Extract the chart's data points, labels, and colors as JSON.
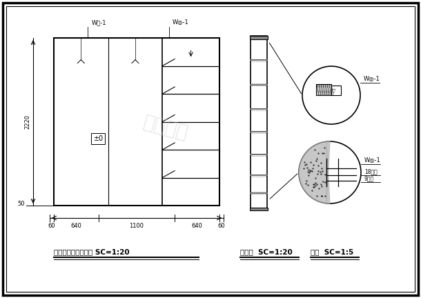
{
  "bg_color": "#ffffff",
  "title1": "走廊柜子内部结构图 SC=1:20",
  "title2": "剖面图  SC=1:20",
  "title3": "详图  SC=1:5",
  "label_wp1": "W户-1",
  "label_wd1": "W◎-1",
  "label_18board": "18厘板",
  "label_9board": "9厘板",
  "height_label": "2220",
  "floor_label": "50",
  "dim_60": "60",
  "dim_640a": "640",
  "dim_1100": "1100",
  "dim_640b": "640",
  "dim_60b": "60",
  "pm0": "±0"
}
